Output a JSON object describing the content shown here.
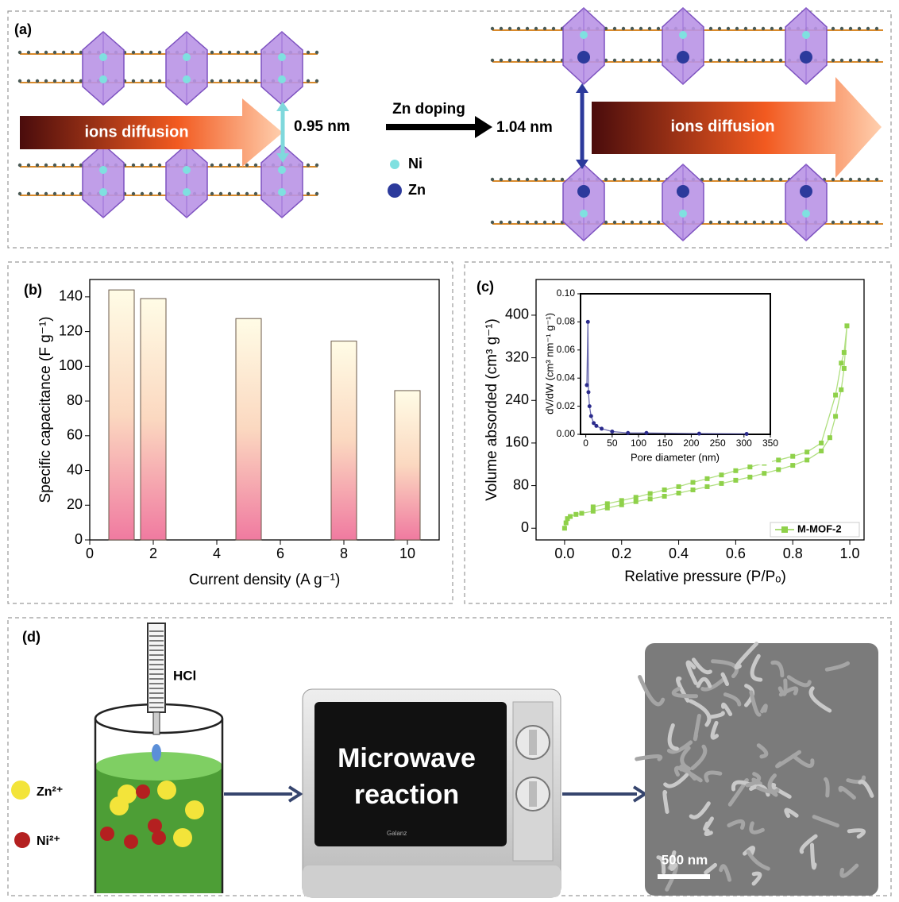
{
  "panels": {
    "a": {
      "label": "(a)",
      "left_arrow": "ions diffusion",
      "spacing_before": "0.95 nm",
      "process": "Zn doping",
      "spacing_after": "1.04 nm",
      "legend": [
        "Ni",
        "Zn"
      ],
      "right_arrow": "ions diffusion"
    },
    "b": {
      "label": "(b)"
    },
    "c": {
      "label": "(c)"
    },
    "d": {
      "label": "(d)",
      "reagent": "HCl",
      "ions": [
        "Zn²⁺",
        "Ni²⁺"
      ],
      "step": [
        "Microwave",
        "reaction"
      ],
      "brand": "Galanz",
      "scale_bar": "500 nm"
    }
  },
  "chart_data": [
    {
      "type": "bar",
      "x": [
        1,
        2,
        5,
        8,
        10
      ],
      "values": [
        144,
        139,
        127.5,
        114.5,
        86
      ],
      "xlabel": "Current density (A g⁻¹)",
      "ylabel": "Specific capacitance (F g⁻¹)",
      "xlim": [
        0,
        11
      ],
      "xticks": [
        0,
        2,
        4,
        6,
        8,
        10
      ],
      "ylim": [
        0,
        150
      ],
      "yticks": [
        0,
        20,
        40,
        60,
        80,
        100,
        120,
        140
      ]
    },
    {
      "type": "line",
      "xlabel": "Relative pressure (P/Pₒ)",
      "ylabel": "Volume absorded (cm³ g⁻¹)",
      "x": [
        0.0,
        0.005,
        0.01,
        0.02,
        0.04,
        0.06,
        0.1,
        0.15,
        0.2,
        0.25,
        0.3,
        0.35,
        0.4,
        0.45,
        0.5,
        0.55,
        0.6,
        0.65,
        0.7,
        0.75,
        0.8,
        0.85,
        0.9,
        0.93,
        0.95,
        0.97,
        0.98,
        0.99,
        0.98,
        0.97,
        0.95,
        0.9,
        0.85,
        0.8,
        0.75,
        0.7,
        0.65,
        0.6,
        0.55,
        0.5,
        0.45,
        0.4,
        0.35,
        0.3,
        0.25,
        0.2,
        0.15,
        0.1
      ],
      "series": [
        {
          "name": "M-MOF-2",
          "color": "#8fd14a",
          "values": [
            0,
            10,
            18,
            22,
            26,
            28,
            32,
            38,
            44,
            50,
            55,
            60,
            66,
            72,
            78,
            84,
            90,
            96,
            103,
            110,
            118,
            128,
            145,
            170,
            210,
            260,
            300,
            380,
            330,
            310,
            250,
            160,
            143,
            135,
            128,
            122,
            115,
            108,
            100,
            93,
            86,
            78,
            72,
            65,
            58,
            52,
            46,
            40
          ]
        }
      ],
      "xlim": [
        -0.1,
        1.05
      ],
      "xticks": [
        {
          "value": 0,
          "label": "0.0"
        },
        0.2,
        0.4,
        0.6,
        0.8,
        {
          "value": 1,
          "label": "1.0"
        }
      ],
      "ylim": [
        -22,
        467
      ],
      "yticks": [
        0,
        80,
        160,
        240,
        320,
        400
      ],
      "legend": "lower right"
    },
    {
      "type": "line",
      "xlabel": "Pore diameter (nm)",
      "ylabel": "dV/dW (cm³ nm⁻¹ g⁻¹)",
      "x": [
        2,
        4,
        5,
        7,
        10,
        15,
        20,
        30,
        50,
        80,
        115,
        215,
        305
      ],
      "series": [
        {
          "color": "#2b2b8c",
          "values": [
            0.035,
            0.08,
            0.03,
            0.02,
            0.013,
            0.008,
            0.006,
            0.004,
            0.002,
            0.001,
            0.001,
            0.0005,
            0.0003
          ]
        }
      ],
      "xlim": [
        -10,
        350
      ],
      "xticks": [
        0,
        50,
        100,
        150,
        200,
        250,
        300,
        350
      ],
      "ylim": [
        0,
        0.1
      ],
      "yticks": [
        {
          "value": 0,
          "label": "0.00"
        },
        {
          "value": 0.02,
          "label": "0.02"
        },
        {
          "value": 0.04,
          "label": "0.04"
        },
        {
          "value": 0.06,
          "label": "0.06"
        },
        {
          "value": 0.08,
          "label": "0.08"
        },
        {
          "value": 0.1,
          "label": "0.10"
        }
      ]
    }
  ]
}
